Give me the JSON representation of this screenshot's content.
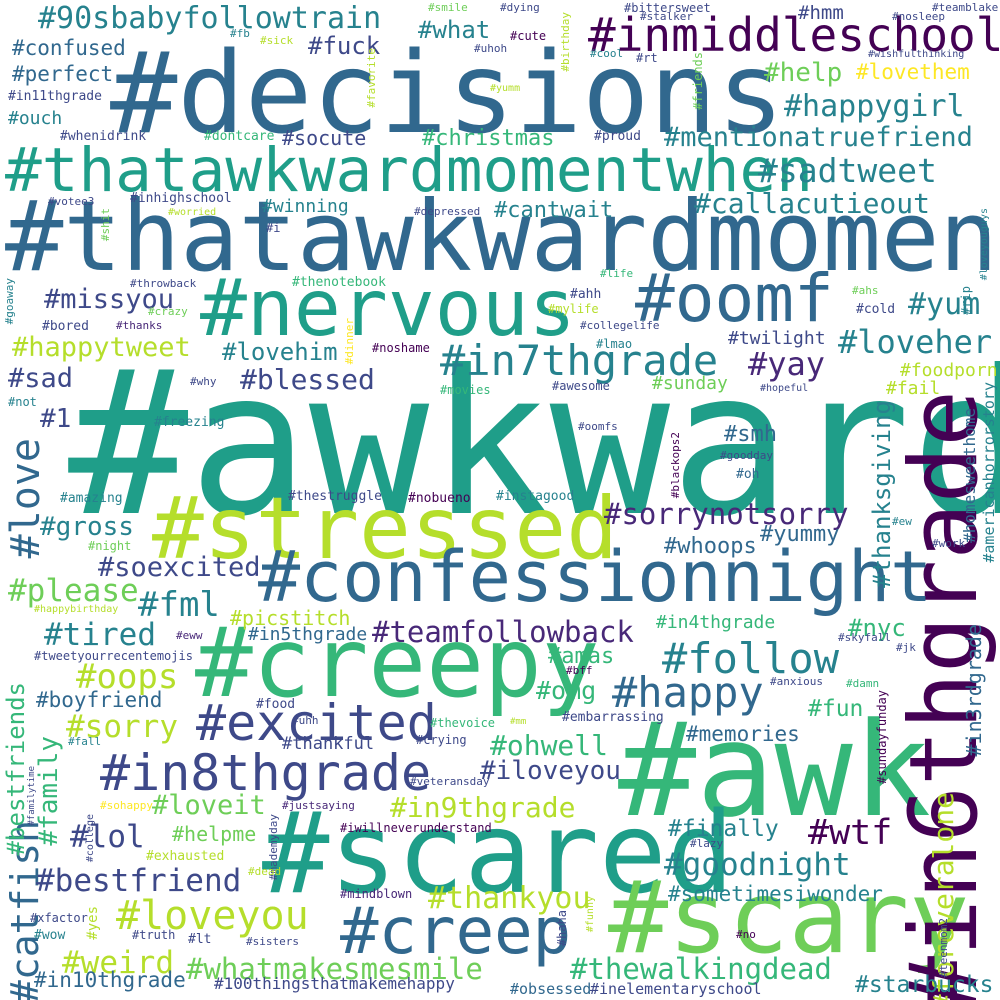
{
  "palette": [
    "#440154",
    "#482878",
    "#3e4989",
    "#31688e",
    "#26828e",
    "#1f9e89",
    "#35b779",
    "#6ece58",
    "#b5de2b",
    "#fde725"
  ],
  "words": [
    {
      "text": "#awkward",
      "color": "#1f9e89"
    },
    {
      "text": "#decisions",
      "color": "#31688e"
    },
    {
      "text": "#thatawkwardmoment",
      "color": "#31688e"
    },
    {
      "text": "#thatawkwardmomentwhen",
      "color": "#1f9e89"
    },
    {
      "text": "#awk",
      "color": "#35b779"
    },
    {
      "text": "#scared",
      "color": "#1f9e89"
    },
    {
      "text": "#scary",
      "color": "#6ece58"
    },
    {
      "text": "#in6thgrade",
      "color": "#440154"
    },
    {
      "text": "#creepy",
      "color": "#35b779"
    },
    {
      "text": "#stressed",
      "color": "#b5de2b"
    },
    {
      "text": "#confessionnight",
      "color": "#31688e"
    },
    {
      "text": "#nervous",
      "color": "#1f9e89"
    },
    {
      "text": "#oomf",
      "color": "#31688e"
    },
    {
      "text": "#inmiddleschool",
      "color": "#440154"
    },
    {
      "text": "#creep",
      "color": "#31688e"
    },
    {
      "text": "#in8thgrade",
      "color": "#3e4989"
    },
    {
      "text": "#excited",
      "color": "#3e4989"
    },
    {
      "text": "#in7thgrade",
      "color": "#26828e"
    },
    {
      "text": "#follow",
      "color": "#26828e"
    },
    {
      "text": "#happy",
      "color": "#31688e"
    },
    {
      "text": "#love",
      "color": "#31688e"
    },
    {
      "text": "#catfish",
      "color": "#31688e"
    },
    {
      "text": "#loveyou",
      "color": "#b5de2b"
    },
    {
      "text": "#90sbabyfollowtrain",
      "color": "#26828e"
    },
    {
      "text": "#teamfollowback",
      "color": "#482878"
    },
    {
      "text": "#sorrynotsorry",
      "color": "#482878"
    },
    {
      "text": "#whatmakesmesmile",
      "color": "#6ece58"
    },
    {
      "text": "#thewalkingdead",
      "color": "#35b779"
    },
    {
      "text": "#bestfriend",
      "color": "#3e4989"
    },
    {
      "text": "#goodnight",
      "color": "#26828e"
    },
    {
      "text": "#wtf",
      "color": "#440154"
    },
    {
      "text": "#thankyou",
      "color": "#b5de2b"
    },
    {
      "text": "#mentionatruefriend",
      "color": "#26828e"
    },
    {
      "text": "#sadtweet",
      "color": "#26828e"
    },
    {
      "text": "#callacutieout",
      "color": "#26828e"
    },
    {
      "text": "#happygirl",
      "color": "#26828e"
    },
    {
      "text": "#foreveralone",
      "color": "#b5de2b"
    },
    {
      "text": "#in3rdgrade",
      "color": "#31688e"
    },
    {
      "text": "#thanksgiving",
      "color": "#26828e"
    },
    {
      "text": "#homesweethome",
      "color": "#31688e"
    },
    {
      "text": "#americanhorrorstory",
      "color": "#26828e"
    },
    {
      "text": "#loveher",
      "color": "#26828e"
    },
    {
      "text": "#yum",
      "color": "#26828e"
    },
    {
      "text": "#yay",
      "color": "#482878"
    },
    {
      "text": "#blessed",
      "color": "#3e4989"
    },
    {
      "text": "#lovehim",
      "color": "#26828e"
    },
    {
      "text": "#happytweet",
      "color": "#b5de2b"
    },
    {
      "text": "#missyou",
      "color": "#3e4989"
    },
    {
      "text": "#sad",
      "color": "#3e4989"
    },
    {
      "text": "#1",
      "color": "#3e4989"
    },
    {
      "text": "#gross",
      "color": "#26828e"
    },
    {
      "text": "#soexcited",
      "color": "#3e4989"
    },
    {
      "text": "#please",
      "color": "#6ece58"
    },
    {
      "text": "#fml",
      "color": "#26828e"
    },
    {
      "text": "#tired",
      "color": "#26828e"
    },
    {
      "text": "#oops",
      "color": "#b5de2b"
    },
    {
      "text": "#sorry",
      "color": "#b5de2b"
    },
    {
      "text": "#boyfriend",
      "color": "#31688e"
    },
    {
      "text": "#family",
      "color": "#35b779"
    },
    {
      "text": "#bestfriends",
      "color": "#35b779"
    },
    {
      "text": "#lol",
      "color": "#3e4989"
    },
    {
      "text": "#loveit",
      "color": "#6ece58"
    },
    {
      "text": "#helpme",
      "color": "#6ece58"
    },
    {
      "text": "#in9thgrade",
      "color": "#b5de2b"
    },
    {
      "text": "#iloveyou",
      "color": "#3e4989"
    },
    {
      "text": "#ohwell",
      "color": "#35b779"
    },
    {
      "text": "#weird",
      "color": "#b5de2b"
    },
    {
      "text": "#in10thgrade",
      "color": "#31688e"
    },
    {
      "text": "#100thingsthatmakemehappy",
      "color": "#3e4989"
    },
    {
      "text": "#obsessed",
      "color": "#31688e"
    },
    {
      "text": "#inelementaryschool",
      "color": "#3e4989"
    },
    {
      "text": "#starbucks",
      "color": "#26828e"
    },
    {
      "text": "#finally",
      "color": "#26828e"
    },
    {
      "text": "#sometimesiwonder",
      "color": "#26828e"
    },
    {
      "text": "#fun",
      "color": "#35b779"
    },
    {
      "text": "#memories",
      "color": "#31688e"
    },
    {
      "text": "#omg",
      "color": "#35b779"
    },
    {
      "text": "#amas",
      "color": "#35b779"
    },
    {
      "text": "#nyc",
      "color": "#35b779"
    },
    {
      "text": "#in4thgrade",
      "color": "#35b779"
    },
    {
      "text": "#in5thgrade",
      "color": "#31688e"
    },
    {
      "text": "#picstitch",
      "color": "#b5de2b"
    },
    {
      "text": "#whoops",
      "color": "#31688e"
    },
    {
      "text": "#yummy",
      "color": "#31688e"
    },
    {
      "text": "#smh",
      "color": "#31688e"
    },
    {
      "text": "#twilight",
      "color": "#3e4989"
    },
    {
      "text": "#foodporn",
      "color": "#b5de2b"
    },
    {
      "text": "#fail",
      "color": "#b5de2b"
    },
    {
      "text": "#sunday",
      "color": "#6ece58"
    },
    {
      "text": "#help",
      "color": "#6ece58"
    },
    {
      "text": "#lovethem",
      "color": "#fde725"
    },
    {
      "text": "#christmas",
      "color": "#35b779"
    },
    {
      "text": "#socute",
      "color": "#3e4989"
    },
    {
      "text": "#cantwait",
      "color": "#26828e"
    },
    {
      "text": "#winning",
      "color": "#26828e"
    },
    {
      "text": "#fuck",
      "color": "#3e4989"
    },
    {
      "text": "#what",
      "color": "#26828e"
    },
    {
      "text": "#hmm",
      "color": "#3e4989"
    },
    {
      "text": "#confused",
      "color": "#31688e"
    },
    {
      "text": "#perfect",
      "color": "#31688e"
    },
    {
      "text": "#ouch",
      "color": "#26828e"
    },
    {
      "text": "#in11thgrade",
      "color": "#3e4989"
    },
    {
      "text": "#whenidrink",
      "color": "#3e4989"
    },
    {
      "text": "#dontcare",
      "color": "#35b779"
    },
    {
      "text": "#proud",
      "color": "#3e4989"
    },
    {
      "text": "#inhighschool",
      "color": "#3e4989"
    },
    {
      "text": "#votee3",
      "color": "#3e4989"
    },
    {
      "text": "#worried",
      "color": "#b5de2b"
    },
    {
      "text": "#depressed",
      "color": "#3e4989"
    },
    {
      "text": "#throwback",
      "color": "#3e4989"
    },
    {
      "text": "#thenotebook",
      "color": "#35b779"
    },
    {
      "text": "#crazy",
      "color": "#6ece58"
    },
    {
      "text": "#bored",
      "color": "#3e4989"
    },
    {
      "text": "#thanks",
      "color": "#482878"
    },
    {
      "text": "#ahh",
      "color": "#3e4989"
    },
    {
      "text": "#mylife",
      "color": "#b5de2b"
    },
    {
      "text": "#collegelife",
      "color": "#3e4989"
    },
    {
      "text": "#ahs",
      "color": "#6ece58"
    },
    {
      "text": "#cold",
      "color": "#3e4989"
    },
    {
      "text": "#life",
      "color": "#35b779"
    },
    {
      "text": "#lmao",
      "color": "#26828e"
    },
    {
      "text": "#noshame",
      "color": "#440154"
    },
    {
      "text": "#why",
      "color": "#3e4989"
    },
    {
      "text": "#not",
      "color": "#26828e"
    },
    {
      "text": "#movies",
      "color": "#35b779"
    },
    {
      "text": "#awesome",
      "color": "#3e4989"
    },
    {
      "text": "#hopeful",
      "color": "#3e4989"
    },
    {
      "text": "#freezing",
      "color": "#26828e"
    },
    {
      "text": "#oomfs",
      "color": "#3e4989"
    },
    {
      "text": "#goodday",
      "color": "#3e4989"
    },
    {
      "text": "#oh",
      "color": "#31688e"
    },
    {
      "text": "#amazing",
      "color": "#26828e"
    },
    {
      "text": "#thestruggle",
      "color": "#3e4989"
    },
    {
      "text": "#nobueno",
      "color": "#440154"
    },
    {
      "text": "#instagood",
      "color": "#26828e"
    },
    {
      "text": "#ew",
      "color": "#26828e"
    },
    {
      "text": "#work",
      "color": "#3e4989"
    },
    {
      "text": "#night",
      "color": "#6ece58"
    },
    {
      "text": "#happybirthday",
      "color": "#b5de2b"
    },
    {
      "text": "#tweetyourrecentemojis",
      "color": "#3e4989"
    },
    {
      "text": "#eww",
      "color": "#482878"
    },
    {
      "text": "#skyfall",
      "color": "#3e4989"
    },
    {
      "text": "#jk",
      "color": "#3e4989"
    },
    {
      "text": "#bff",
      "color": "#440154"
    },
    {
      "text": "#anxious",
      "color": "#3e4989"
    },
    {
      "text": "#damn",
      "color": "#35b779"
    },
    {
      "text": "#food",
      "color": "#3e4989"
    },
    {
      "text": "#uhh",
      "color": "#3e4989"
    },
    {
      "text": "#thevoice",
      "color": "#35b779"
    },
    {
      "text": "#mm",
      "color": "#b5de2b"
    },
    {
      "text": "#embarrassing",
      "color": "#3e4989"
    },
    {
      "text": "#sundayfunday",
      "color": "#440154"
    },
    {
      "text": "#fall",
      "color": "#26828e"
    },
    {
      "text": "#thankful",
      "color": "#3e4989"
    },
    {
      "text": "#crying",
      "color": "#3e4989"
    },
    {
      "text": "#veteransday",
      "color": "#3e4989"
    },
    {
      "text": "#familytime",
      "color": "#3e4989"
    },
    {
      "text": "#sohappy",
      "color": "#fde725"
    },
    {
      "text": "#justsaying",
      "color": "#482878"
    },
    {
      "text": "#college",
      "color": "#3e4989"
    },
    {
      "text": "#mademyday",
      "color": "#3e4989"
    },
    {
      "text": "#iwillneverunderstand",
      "color": "#440154"
    },
    {
      "text": "#lazy",
      "color": "#3e4989"
    },
    {
      "text": "#exhausted",
      "color": "#b5de2b"
    },
    {
      "text": "#dead",
      "color": "#b5de2b"
    },
    {
      "text": "#mindblown",
      "color": "#482878"
    },
    {
      "text": "#funny",
      "color": "#b5de2b"
    },
    {
      "text": "#xfactor",
      "color": "#3e4989"
    },
    {
      "text": "#yes",
      "color": "#b5de2b"
    },
    {
      "text": "#wow",
      "color": "#26828e"
    },
    {
      "text": "#truth",
      "color": "#3e4989"
    },
    {
      "text": "#lt",
      "color": "#3e4989"
    },
    {
      "text": "#sisters",
      "color": "#3e4989"
    },
    {
      "text": "#haha",
      "color": "#3e4989"
    },
    {
      "text": "#no",
      "color": "#440154"
    },
    {
      "text": "#teenmom2",
      "color": "#3e4989"
    },
    {
      "text": "#blackops2",
      "color": "#440154"
    },
    {
      "text": "#goaway",
      "color": "#26828e"
    },
    {
      "text": "#rip",
      "color": "#26828e"
    },
    {
      "text": "#loveyouguys",
      "color": "#26828e"
    },
    {
      "text": "#dinner",
      "color": "#fde725"
    },
    {
      "text": "#shit",
      "color": "#6ece58"
    },
    {
      "text": "#i",
      "color": "#3e4989"
    },
    {
      "text": "#smile",
      "color": "#6ece58"
    },
    {
      "text": "#dying",
      "color": "#3e4989"
    },
    {
      "text": "#cute",
      "color": "#440154"
    },
    {
      "text": "#uhoh",
      "color": "#3e4989"
    },
    {
      "text": "#bittersweet",
      "color": "#3e4989"
    },
    {
      "text": "#stalker",
      "color": "#3e4989"
    },
    {
      "text": "#nosleep",
      "color": "#3e4989"
    },
    {
      "text": "#teamblake",
      "color": "#3e4989"
    },
    {
      "text": "#wishfulthinking",
      "color": "#3e4989"
    },
    {
      "text": "#cool",
      "color": "#26828e"
    },
    {
      "text": "#rt",
      "color": "#3e4989"
    },
    {
      "text": "#yumm",
      "color": "#b5de2b"
    },
    {
      "text": "#fb",
      "color": "#26828e"
    },
    {
      "text": "#sick",
      "color": "#b5de2b"
    },
    {
      "text": "#birthday",
      "color": "#b5de2b"
    },
    {
      "text": "#favorite",
      "color": "#b5de2b"
    },
    {
      "text": "#friends",
      "color": "#6ece58"
    }
  ]
}
